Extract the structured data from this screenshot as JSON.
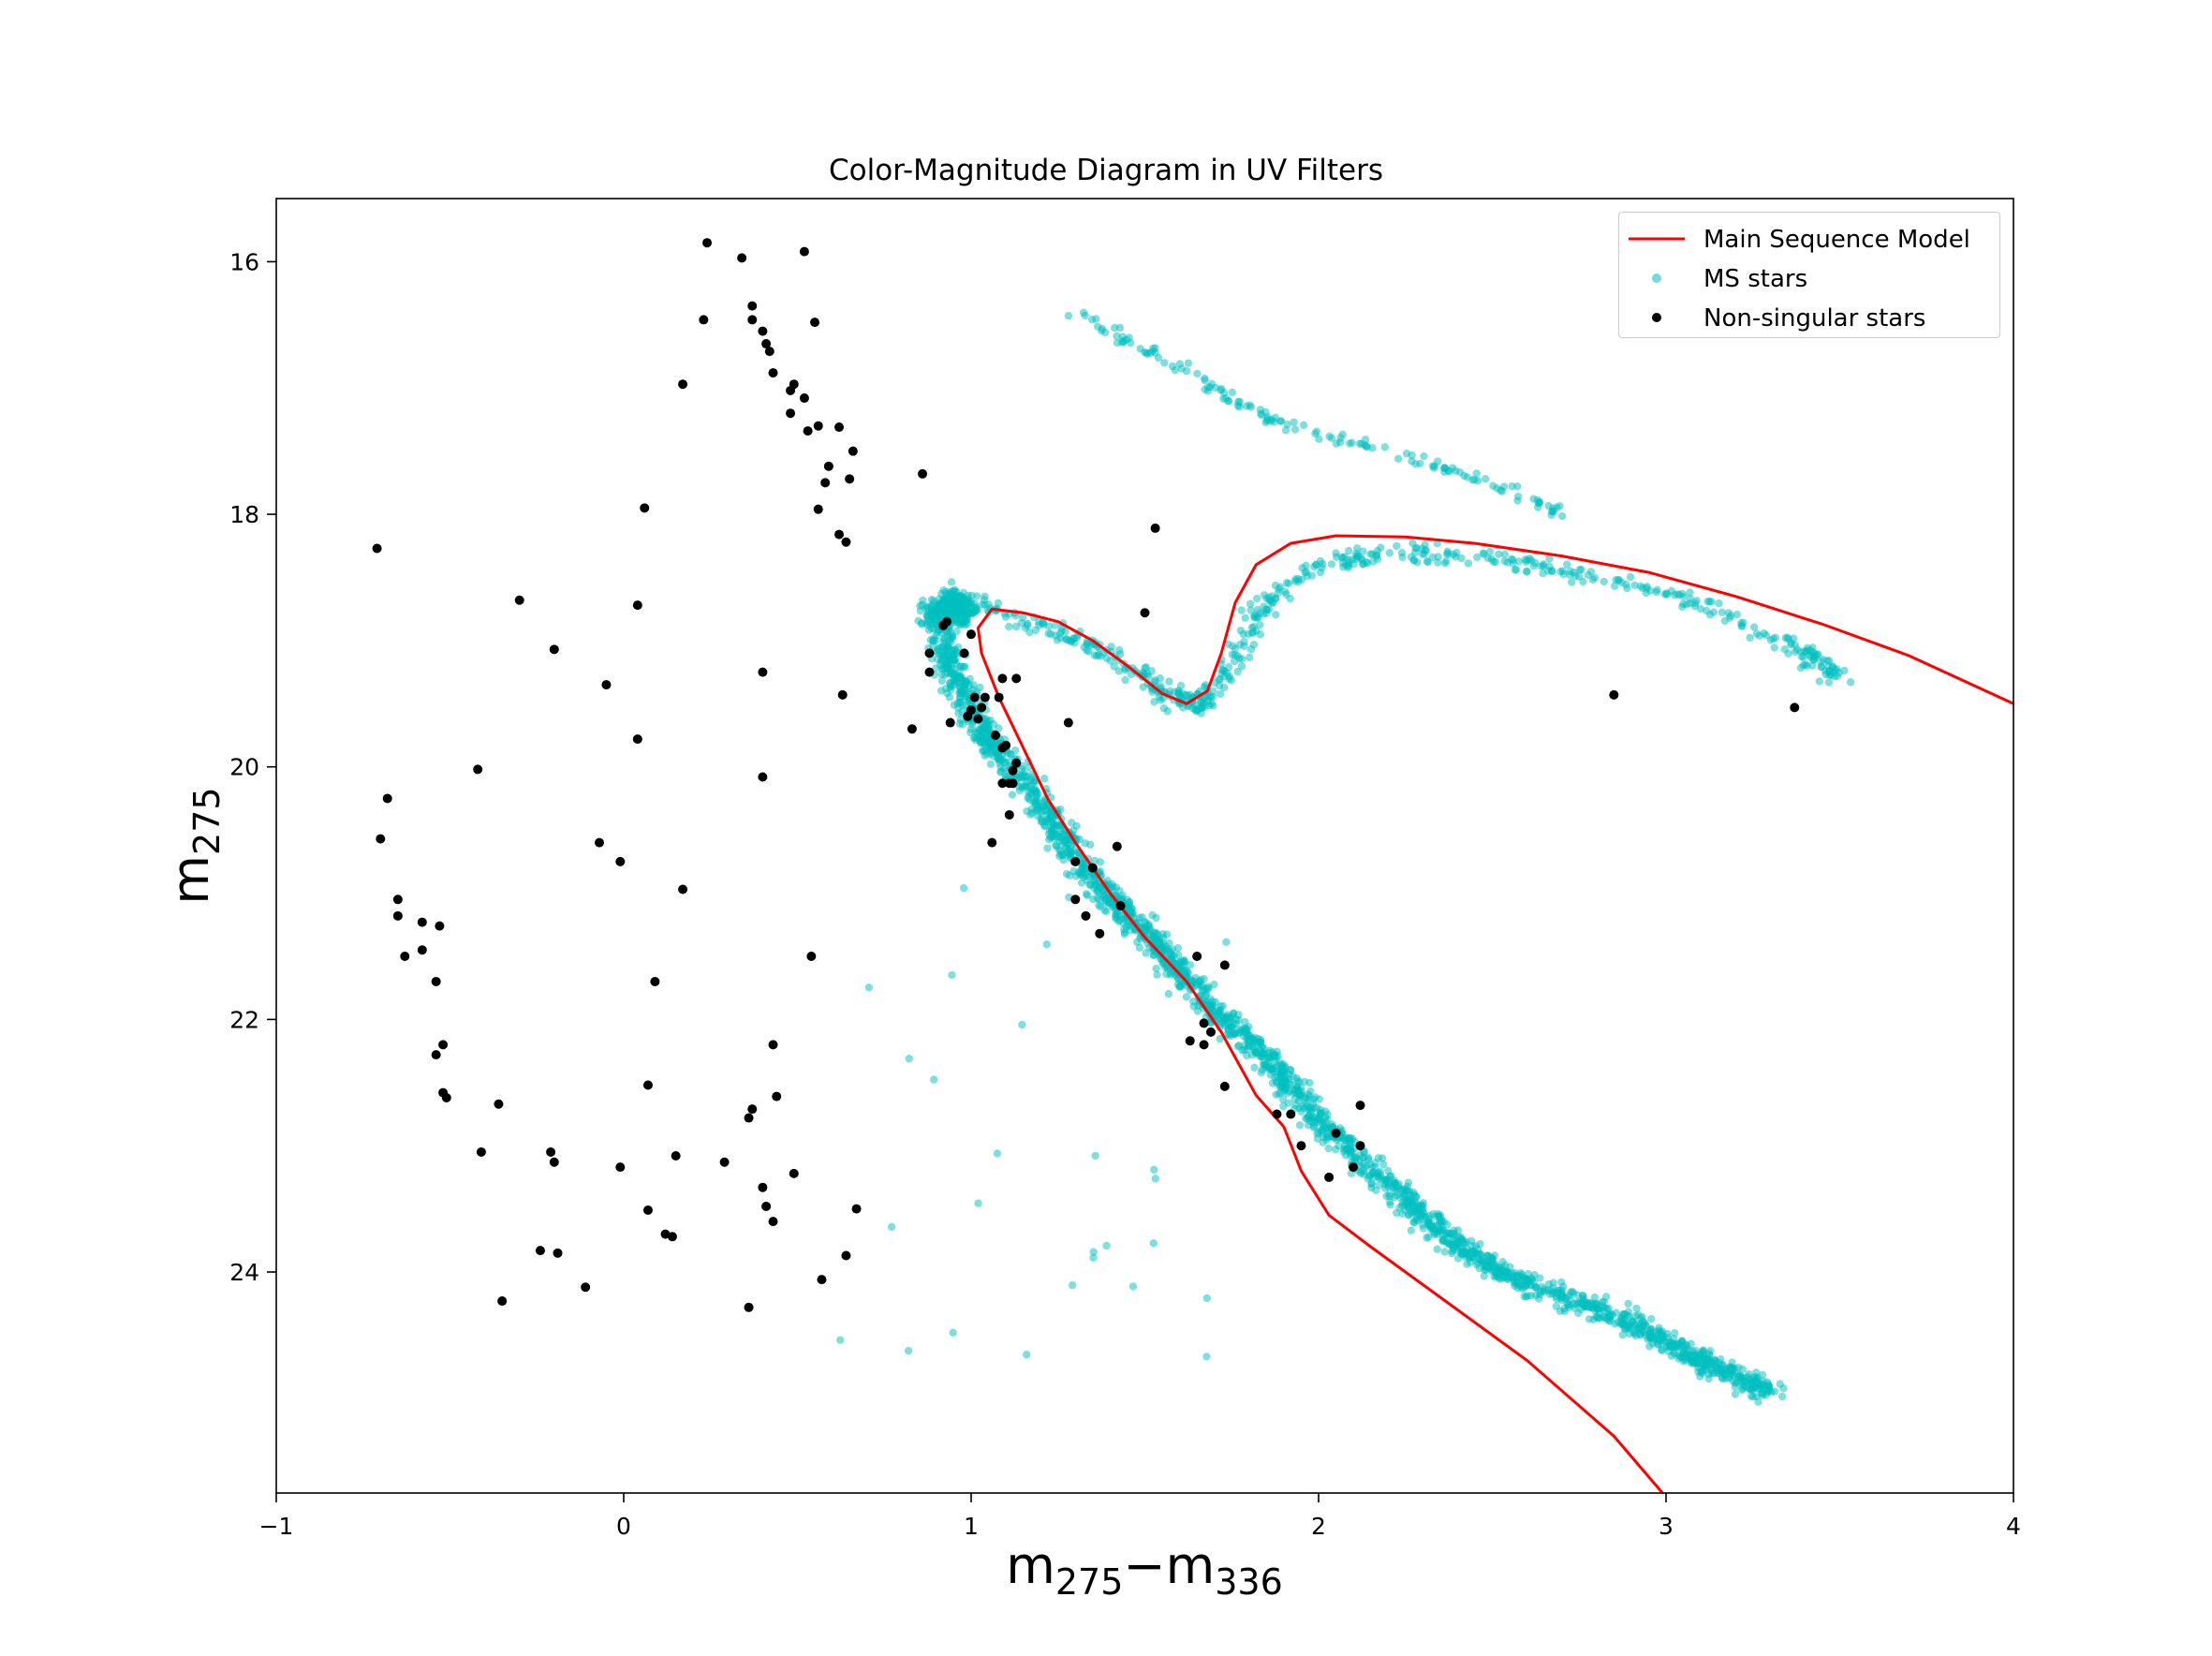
{
  "chart_data": {
    "type": "scatter",
    "title": "Color-Magnitude Diagram in UV Filters",
    "xlabel": "m275−m336",
    "ylabel": "m275",
    "xlim": [
      -1,
      4
    ],
    "ylim": [
      25.75,
      15.5
    ],
    "y_inverted": true,
    "xticks": [
      -1,
      0,
      1,
      2,
      3,
      4
    ],
    "yticks": [
      16,
      18,
      20,
      22,
      24
    ],
    "grid": false,
    "legend_position": "top-right",
    "series": [
      {
        "name": "Main Sequence Model",
        "kind": "line",
        "color": "#ff0000",
        "points": [
          [
            2.99,
            25.75
          ],
          [
            2.85,
            25.3
          ],
          [
            2.6,
            24.7
          ],
          [
            2.35,
            24.2
          ],
          [
            2.15,
            23.8
          ],
          [
            2.03,
            23.55
          ],
          [
            1.95,
            23.2
          ],
          [
            1.9,
            22.85
          ],
          [
            1.82,
            22.6
          ],
          [
            1.72,
            22.1
          ],
          [
            1.62,
            21.7
          ],
          [
            1.5,
            21.35
          ],
          [
            1.4,
            21.0
          ],
          [
            1.3,
            20.6
          ],
          [
            1.22,
            20.25
          ],
          [
            1.15,
            19.85
          ],
          [
            1.08,
            19.45
          ],
          [
            1.03,
            19.1
          ],
          [
            1.02,
            18.9
          ],
          [
            1.06,
            18.75
          ],
          [
            1.15,
            18.78
          ],
          [
            1.25,
            18.85
          ],
          [
            1.35,
            19.0
          ],
          [
            1.45,
            19.2
          ],
          [
            1.55,
            19.42
          ],
          [
            1.62,
            19.5
          ],
          [
            1.68,
            19.4
          ],
          [
            1.72,
            19.1
          ],
          [
            1.76,
            18.7
          ],
          [
            1.82,
            18.4
          ],
          [
            1.92,
            18.23
          ],
          [
            2.05,
            18.17
          ],
          [
            2.25,
            18.18
          ],
          [
            2.45,
            18.23
          ],
          [
            2.7,
            18.33
          ],
          [
            2.95,
            18.46
          ],
          [
            3.2,
            18.65
          ],
          [
            3.45,
            18.87
          ],
          [
            3.7,
            19.12
          ],
          [
            4.0,
            19.5
          ]
        ]
      },
      {
        "name": "MS stars",
        "kind": "scatter",
        "color": "#00bfbf",
        "approx_count": 8000,
        "description_points": [
          [
            0.9,
            18.8
          ],
          [
            1.0,
            19.5
          ],
          [
            1.2,
            20.3
          ],
          [
            1.4,
            21.0
          ],
          [
            1.6,
            21.6
          ],
          [
            1.8,
            22.2
          ],
          [
            2.0,
            22.8
          ],
          [
            2.2,
            23.3
          ],
          [
            2.5,
            23.9
          ],
          [
            2.8,
            24.3
          ],
          [
            3.0,
            24.6
          ],
          [
            3.3,
            24.9
          ],
          [
            1.6,
            19.6
          ],
          [
            1.9,
            18.6
          ],
          [
            2.2,
            18.3
          ],
          [
            2.6,
            18.4
          ],
          [
            3.0,
            18.6
          ],
          [
            3.4,
            19.1
          ],
          [
            1.3,
            16.5
          ],
          [
            1.6,
            16.9
          ],
          [
            1.9,
            17.2
          ],
          [
            2.3,
            17.5
          ],
          [
            2.6,
            17.8
          ]
        ]
      },
      {
        "name": "Non-singular stars",
        "kind": "scatter",
        "color": "#000000",
        "points": [
          [
            0.24,
            15.85
          ],
          [
            0.34,
            15.97
          ],
          [
            0.52,
            15.92
          ],
          [
            0.37,
            16.35
          ],
          [
            0.37,
            16.46
          ],
          [
            0.23,
            16.46
          ],
          [
            0.4,
            16.55
          ],
          [
            0.41,
            16.65
          ],
          [
            0.42,
            16.71
          ],
          [
            0.55,
            16.48
          ],
          [
            0.43,
            16.88
          ],
          [
            0.49,
            16.97
          ],
          [
            0.48,
            17.02
          ],
          [
            0.17,
            16.97
          ],
          [
            0.52,
            17.08
          ],
          [
            0.48,
            17.2
          ],
          [
            0.56,
            17.3
          ],
          [
            0.53,
            17.34
          ],
          [
            0.62,
            17.31
          ],
          [
            0.66,
            17.5
          ],
          [
            0.59,
            17.62
          ],
          [
            0.58,
            17.75
          ],
          [
            0.65,
            17.72
          ],
          [
            0.86,
            17.68
          ],
          [
            0.56,
            17.96
          ],
          [
            0.62,
            18.16
          ],
          [
            0.64,
            18.22
          ],
          [
            0.06,
            17.95
          ],
          [
            -0.71,
            18.27
          ],
          [
            -0.3,
            18.68
          ],
          [
            0.04,
            18.72
          ],
          [
            -0.2,
            19.07
          ],
          [
            0.4,
            19.25
          ],
          [
            -0.05,
            19.35
          ],
          [
            0.63,
            19.43
          ],
          [
            0.93,
            18.85
          ],
          [
            0.92,
            18.88
          ],
          [
            1.0,
            18.95
          ],
          [
            0.88,
            19.1
          ],
          [
            0.88,
            19.25
          ],
          [
            0.98,
            19.1
          ],
          [
            1.01,
            19.45
          ],
          [
            1.04,
            19.45
          ],
          [
            1.08,
            19.45
          ],
          [
            1.03,
            19.53
          ],
          [
            1.0,
            19.55
          ],
          [
            0.99,
            19.6
          ],
          [
            1.02,
            19.62
          ],
          [
            0.94,
            19.65
          ],
          [
            0.83,
            19.7
          ],
          [
            1.09,
            19.3
          ],
          [
            1.13,
            19.3
          ],
          [
            1.28,
            19.65
          ],
          [
            1.07,
            19.75
          ],
          [
            1.1,
            19.83
          ],
          [
            1.09,
            19.85
          ],
          [
            1.12,
            20.03
          ],
          [
            1.13,
            19.97
          ],
          [
            1.11,
            20.13
          ],
          [
            1.12,
            20.13
          ],
          [
            1.09,
            20.13
          ],
          [
            1.11,
            20.38
          ],
          [
            1.06,
            20.6
          ],
          [
            0.04,
            19.78
          ],
          [
            -0.42,
            20.02
          ],
          [
            0.4,
            20.08
          ],
          [
            -0.68,
            20.25
          ],
          [
            -0.7,
            20.57
          ],
          [
            -0.07,
            20.6
          ],
          [
            -0.01,
            20.75
          ],
          [
            -0.65,
            21.05
          ],
          [
            0.17,
            20.97
          ],
          [
            -0.65,
            21.18
          ],
          [
            -0.58,
            21.23
          ],
          [
            -0.53,
            21.26
          ],
          [
            -0.63,
            21.5
          ],
          [
            -0.58,
            21.45
          ],
          [
            -0.54,
            21.7
          ],
          [
            0.09,
            21.7
          ],
          [
            0.54,
            21.5
          ],
          [
            1.42,
            20.63
          ],
          [
            1.3,
            20.75
          ],
          [
            1.35,
            20.8
          ],
          [
            1.3,
            21.05
          ],
          [
            1.43,
            21.1
          ],
          [
            1.33,
            21.18
          ],
          [
            1.37,
            21.32
          ],
          [
            1.65,
            21.5
          ],
          [
            1.73,
            21.57
          ],
          [
            -0.52,
            22.2
          ],
          [
            -0.54,
            22.28
          ],
          [
            0.43,
            22.2
          ],
          [
            -0.52,
            22.58
          ],
          [
            -0.51,
            22.62
          ],
          [
            -0.36,
            22.67
          ],
          [
            0.07,
            22.52
          ],
          [
            0.44,
            22.61
          ],
          [
            0.37,
            22.71
          ],
          [
            0.36,
            22.78
          ],
          [
            1.67,
            22.03
          ],
          [
            1.63,
            22.17
          ],
          [
            1.67,
            22.2
          ],
          [
            1.69,
            22.1
          ],
          [
            1.73,
            22.53
          ],
          [
            1.88,
            22.75
          ],
          [
            1.92,
            22.75
          ],
          [
            2.12,
            22.68
          ],
          [
            2.05,
            22.9
          ],
          [
            1.95,
            23.0
          ],
          [
            2.12,
            23.0
          ],
          [
            2.03,
            23.25
          ],
          [
            2.1,
            23.17
          ],
          [
            -0.41,
            23.05
          ],
          [
            -0.21,
            23.05
          ],
          [
            -0.2,
            23.13
          ],
          [
            0.15,
            23.08
          ],
          [
            0.29,
            23.13
          ],
          [
            0.49,
            23.22
          ],
          [
            -0.01,
            23.17
          ],
          [
            0.4,
            23.33
          ],
          [
            0.41,
            23.48
          ],
          [
            0.43,
            23.6
          ],
          [
            0.67,
            23.5
          ],
          [
            0.07,
            23.51
          ],
          [
            0.12,
            23.7
          ],
          [
            0.14,
            23.72
          ],
          [
            0.64,
            23.87
          ],
          [
            -0.24,
            23.83
          ],
          [
            -0.19,
            23.85
          ],
          [
            -0.11,
            24.12
          ],
          [
            0.57,
            24.06
          ],
          [
            -0.35,
            24.23
          ],
          [
            0.36,
            24.28
          ],
          [
            1.5,
            18.78
          ],
          [
            1.53,
            18.11
          ],
          [
            2.85,
            19.43
          ],
          [
            3.37,
            19.53
          ]
        ]
      }
    ]
  },
  "legend": {
    "items": [
      "Main Sequence Model",
      "MS stars",
      "Non-singular stars"
    ]
  },
  "axes": {
    "xtick_labels": [
      "−1",
      "0",
      "1",
      "2",
      "3",
      "4"
    ],
    "ytick_labels": [
      "16",
      "18",
      "20",
      "22",
      "24"
    ],
    "xlabel_main": "m",
    "xlabel_sub1": "275",
    "xlabel_sep": "−m",
    "xlabel_sub2": "336",
    "ylabel_main": "m",
    "ylabel_sub": "275"
  }
}
